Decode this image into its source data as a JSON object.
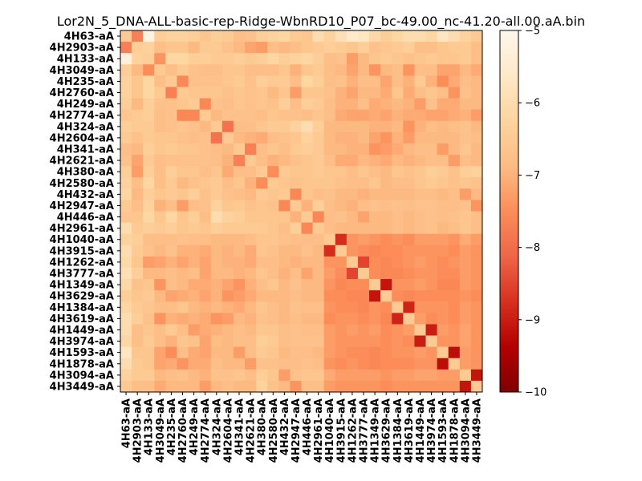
{
  "chart_data": {
    "type": "heatmap",
    "title": "Lor2N_5_DNA-ALL-basic-rep-Ridge-WbnRD10_P07_bc-49.00_nc-41.20-all.00.aA.bin",
    "labels": [
      "4H63-aA",
      "4H2903-aA",
      "4H133-aA",
      "4H3049-aA",
      "4H235-aA",
      "4H2760-aA",
      "4H249-aA",
      "4H2774-aA",
      "4H324-aA",
      "4H2604-aA",
      "4H341-aA",
      "4H2621-aA",
      "4H380-aA",
      "4H2580-aA",
      "4H432-aA",
      "4H2947-aA",
      "4H446-aA",
      "4H2961-aA",
      "4H1040-aA",
      "4H3915-aA",
      "4H1262-aA",
      "4H3777-aA",
      "4H1349-aA",
      "4H3629-aA",
      "4H1384-aA",
      "4H3619-aA",
      "4H1449-aA",
      "4H3974-aA",
      "4H1593-aA",
      "4H1878-aA",
      "4H3094-aA",
      "4H3449-aA"
    ],
    "colorbar": {
      "range": [
        -10,
        -5
      ],
      "ticks": [
        -5,
        -6,
        -7,
        -8,
        -9,
        -10
      ],
      "tick_labels": [
        "−5",
        "−6",
        "−7",
        "−8",
        "−9",
        "−10"
      ],
      "colormap": "OrRd_r"
    },
    "values": [
      [
        -6.5,
        -7.7,
        -5.2,
        -6.4,
        -6.3,
        -6.3,
        -6.4,
        -6.6,
        -6.4,
        -6.5,
        -6.8,
        -6.7,
        -6.4,
        -6.3,
        -6.2,
        -6.5,
        -6.6,
        -6.0,
        -6.3,
        -5.9,
        -5.6,
        -5.7,
        -6.1,
        -6.4,
        -6.2,
        -6.0,
        -6.0,
        -6.2,
        -5.7,
        -6.0,
        -6.3,
        -6.5
      ],
      [
        -7.7,
        -6.4,
        -6.3,
        -6.8,
        -6.6,
        -6.6,
        -6.9,
        -6.5,
        -6.5,
        -6.7,
        -6.9,
        -7.2,
        -7.3,
        -6.8,
        -6.9,
        -6.8,
        -6.6,
        -6.5,
        -6.4,
        -6.5,
        -6.6,
        -6.4,
        -6.7,
        -6.6,
        -6.5,
        -6.4,
        -6.8,
        -6.8,
        -6.6,
        -6.5,
        -6.5,
        -6.8
      ],
      [
        -5.3,
        -6.3,
        -6.4,
        -7.4,
        -6.2,
        -6.2,
        -6.4,
        -6.4,
        -6.5,
        -6.5,
        -6.4,
        -6.5,
        -6.4,
        -6.2,
        -6.4,
        -6.3,
        -6.2,
        -6.4,
        -6.8,
        -6.7,
        -7.3,
        -6.9,
        -6.6,
        -6.5,
        -6.6,
        -6.7,
        -6.6,
        -6.5,
        -6.6,
        -6.6,
        -6.5,
        -6.8
      ],
      [
        -6.4,
        -6.9,
        -7.5,
        -6.5,
        -6.8,
        -6.5,
        -6.7,
        -6.8,
        -6.8,
        -6.6,
        -6.6,
        -6.8,
        -6.8,
        -6.8,
        -6.6,
        -7.0,
        -6.6,
        -6.5,
        -6.8,
        -6.9,
        -7.2,
        -6.9,
        -7.4,
        -6.9,
        -6.8,
        -7.4,
        -6.8,
        -6.8,
        -7.2,
        -7.2,
        -6.9,
        -7.1
      ],
      [
        -6.3,
        -6.6,
        -6.2,
        -6.8,
        -6.5,
        -7.6,
        -6.7,
        -6.7,
        -6.7,
        -6.6,
        -6.5,
        -6.7,
        -6.4,
        -6.5,
        -6.5,
        -6.8,
        -6.2,
        -6.4,
        -6.8,
        -6.7,
        -7.0,
        -6.8,
        -6.8,
        -7.2,
        -6.8,
        -7.0,
        -6.5,
        -7.0,
        -7.5,
        -7.1,
        -6.8,
        -6.9
      ],
      [
        -6.3,
        -6.6,
        -6.2,
        -6.5,
        -7.7,
        -6.5,
        -6.6,
        -6.6,
        -6.6,
        -6.7,
        -6.6,
        -6.7,
        -6.6,
        -6.9,
        -6.6,
        -7.3,
        -6.6,
        -6.6,
        -6.7,
        -7.0,
        -7.2,
        -6.9,
        -6.9,
        -7.1,
        -6.6,
        -7.1,
        -6.8,
        -6.6,
        -6.8,
        -7.4,
        -6.7,
        -6.9
      ],
      [
        -6.4,
        -6.9,
        -6.4,
        -6.7,
        -6.7,
        -6.6,
        -6.5,
        -7.6,
        -6.7,
        -6.8,
        -6.6,
        -6.7,
        -6.6,
        -6.7,
        -6.4,
        -6.8,
        -6.4,
        -6.5,
        -6.8,
        -7.0,
        -7.0,
        -6.8,
        -7.1,
        -7.0,
        -6.9,
        -7.0,
        -7.3,
        -6.7,
        -7.1,
        -7.1,
        -6.9,
        -6.9
      ],
      [
        -6.6,
        -6.5,
        -6.4,
        -6.8,
        -6.7,
        -7.6,
        -7.6,
        -6.5,
        -6.9,
        -6.7,
        -6.7,
        -6.7,
        -6.8,
        -6.6,
        -6.7,
        -6.7,
        -6.8,
        -6.6,
        -6.8,
        -7.1,
        -7.2,
        -7.2,
        -7.1,
        -7.2,
        -7.0,
        -7.1,
        -7.1,
        -7.2,
        -7.2,
        -7.1,
        -7.0,
        -7.3
      ],
      [
        -6.4,
        -6.5,
        -6.5,
        -6.8,
        -6.7,
        -6.6,
        -6.7,
        -6.9,
        -6.5,
        -7.9,
        -6.8,
        -6.8,
        -6.6,
        -6.5,
        -6.5,
        -6.3,
        -6.0,
        -6.4,
        -6.9,
        -6.9,
        -6.9,
        -6.9,
        -7.0,
        -7.0,
        -6.9,
        -7.4,
        -7.0,
        -6.8,
        -6.9,
        -6.8,
        -6.7,
        -6.9
      ],
      [
        -6.5,
        -6.7,
        -6.5,
        -6.6,
        -6.6,
        -6.7,
        -6.8,
        -6.7,
        -7.9,
        -6.5,
        -6.9,
        -7.0,
        -7.1,
        -6.8,
        -6.7,
        -6.6,
        -6.3,
        -6.5,
        -6.9,
        -7.0,
        -7.0,
        -6.9,
        -7.2,
        -7.4,
        -7.0,
        -7.3,
        -6.9,
        -6.9,
        -6.9,
        -6.9,
        -6.7,
        -6.8
      ],
      [
        -6.8,
        -6.9,
        -6.4,
        -6.6,
        -6.5,
        -6.6,
        -6.6,
        -6.7,
        -6.8,
        -6.9,
        -6.5,
        -7.7,
        -6.8,
        -6.6,
        -6.8,
        -6.5,
        -6.4,
        -6.5,
        -6.9,
        -6.9,
        -7.0,
        -7.0,
        -7.4,
        -7.3,
        -7.1,
        -6.9,
        -6.8,
        -6.8,
        -7.3,
        -6.9,
        -6.6,
        -6.9
      ],
      [
        -6.7,
        -7.2,
        -6.5,
        -6.8,
        -6.7,
        -6.7,
        -6.7,
        -6.7,
        -6.8,
        -7.0,
        -7.7,
        -6.5,
        -6.8,
        -7.0,
        -6.9,
        -6.7,
        -6.6,
        -6.5,
        -6.8,
        -7.1,
        -7.1,
        -6.9,
        -7.0,
        -7.1,
        -6.9,
        -7.0,
        -6.9,
        -6.8,
        -6.8,
        -7.3,
        -6.8,
        -6.9
      ],
      [
        -6.4,
        -7.3,
        -6.4,
        -6.8,
        -6.4,
        -6.6,
        -6.6,
        -6.8,
        -6.6,
        -7.1,
        -6.8,
        -6.8,
        -6.5,
        -7.5,
        -6.5,
        -6.6,
        -6.6,
        -6.5,
        -6.6,
        -6.6,
        -6.8,
        -6.6,
        -6.8,
        -6.9,
        -6.6,
        -6.7,
        -6.6,
        -6.4,
        -6.5,
        -6.7,
        -6.4,
        -6.3
      ],
      [
        -6.3,
        -6.8,
        -6.2,
        -6.8,
        -6.5,
        -6.9,
        -6.7,
        -6.6,
        -6.5,
        -6.8,
        -6.6,
        -7.0,
        -7.5,
        -6.5,
        -6.6,
        -6.7,
        -6.6,
        -6.6,
        -6.6,
        -6.7,
        -6.8,
        -6.8,
        -6.6,
        -6.9,
        -6.8,
        -6.8,
        -6.6,
        -6.5,
        -6.6,
        -6.7,
        -6.6,
        -6.7
      ],
      [
        -6.2,
        -6.9,
        -6.4,
        -6.6,
        -6.5,
        -6.6,
        -6.4,
        -6.7,
        -6.5,
        -6.7,
        -6.8,
        -6.9,
        -6.5,
        -6.6,
        -6.5,
        -7.6,
        -6.6,
        -6.8,
        -6.7,
        -6.9,
        -6.9,
        -7.0,
        -6.9,
        -6.9,
        -6.9,
        -6.9,
        -6.8,
        -6.8,
        -6.9,
        -6.8,
        -7.3,
        -6.9
      ],
      [
        -6.5,
        -6.8,
        -6.3,
        -7.0,
        -6.8,
        -7.3,
        -6.8,
        -6.7,
        -6.3,
        -6.6,
        -6.5,
        -6.7,
        -6.6,
        -6.7,
        -7.6,
        -6.5,
        -7.0,
        -6.4,
        -6.8,
        -6.9,
        -7.0,
        -6.8,
        -6.7,
        -6.8,
        -6.7,
        -6.8,
        -6.7,
        -6.7,
        -6.8,
        -6.8,
        -6.7,
        -7.4
      ],
      [
        -6.6,
        -6.6,
        -6.2,
        -6.6,
        -6.2,
        -6.6,
        -6.4,
        -6.8,
        -6.0,
        -6.3,
        -6.4,
        -6.6,
        -6.6,
        -6.6,
        -6.6,
        -7.0,
        -6.5,
        -7.6,
        -6.8,
        -6.7,
        -6.9,
        -7.2,
        -6.9,
        -6.9,
        -6.8,
        -6.9,
        -6.8,
        -6.7,
        -6.8,
        -6.7,
        -6.6,
        -6.8
      ],
      [
        -6.0,
        -6.5,
        -6.4,
        -6.5,
        -6.4,
        -6.6,
        -6.5,
        -6.6,
        -6.4,
        -6.5,
        -6.5,
        -6.5,
        -6.5,
        -6.6,
        -6.8,
        -6.4,
        -7.6,
        -6.5,
        -6.8,
        -6.9,
        -6.9,
        -6.9,
        -6.9,
        -6.9,
        -6.8,
        -6.9,
        -6.8,
        -6.7,
        -6.9,
        -6.8,
        -6.6,
        -6.8
      ],
      [
        -6.3,
        -6.4,
        -6.8,
        -6.8,
        -6.8,
        -6.7,
        -6.8,
        -6.8,
        -6.9,
        -6.9,
        -6.9,
        -6.8,
        -6.6,
        -6.6,
        -6.7,
        -6.8,
        -6.8,
        -6.8,
        -6.5,
        -8.8,
        -7.4,
        -7.3,
        -7.4,
        -7.5,
        -7.4,
        -7.5,
        -7.3,
        -7.3,
        -7.3,
        -7.4,
        -7.1,
        -7.3
      ],
      [
        -6.0,
        -6.5,
        -6.7,
        -6.9,
        -6.7,
        -7.0,
        -7.0,
        -7.1,
        -6.9,
        -7.0,
        -6.9,
        -7.1,
        -6.6,
        -6.7,
        -6.9,
        -6.9,
        -6.7,
        -6.9,
        -8.8,
        -6.5,
        -7.4,
        -7.5,
        -7.6,
        -7.5,
        -7.5,
        -7.4,
        -7.4,
        -7.4,
        -7.4,
        -7.5,
        -7.3,
        -7.4
      ],
      [
        -6.1,
        -6.6,
        -7.3,
        -7.2,
        -7.0,
        -7.2,
        -7.0,
        -7.2,
        -6.9,
        -7.0,
        -7.0,
        -7.1,
        -6.8,
        -6.8,
        -6.9,
        -7.0,
        -6.9,
        -6.9,
        -7.4,
        -7.4,
        -6.5,
        -8.5,
        -7.5,
        -7.6,
        -7.5,
        -7.4,
        -7.3,
        -7.4,
        -7.5,
        -7.4,
        -7.3,
        -7.4
      ],
      [
        -5.9,
        -6.4,
        -6.9,
        -6.9,
        -6.8,
        -6.9,
        -6.8,
        -7.2,
        -6.9,
        -6.9,
        -7.0,
        -6.9,
        -6.6,
        -6.8,
        -7.0,
        -6.8,
        -7.2,
        -6.9,
        -7.3,
        -7.5,
        -8.5,
        -6.5,
        -7.5,
        -7.6,
        -7.6,
        -7.5,
        -7.4,
        -7.4,
        -7.5,
        -7.5,
        -7.3,
        -7.4
      ],
      [
        -6.1,
        -6.7,
        -6.6,
        -7.4,
        -6.8,
        -6.9,
        -7.1,
        -7.1,
        -7.0,
        -7.2,
        -7.4,
        -7.0,
        -6.8,
        -6.6,
        -6.9,
        -6.7,
        -6.9,
        -6.9,
        -7.4,
        -7.6,
        -7.5,
        -7.5,
        -6.5,
        -9.1,
        -7.4,
        -7.4,
        -7.3,
        -7.4,
        -7.6,
        -7.6,
        -7.3,
        -7.4
      ],
      [
        -6.4,
        -6.6,
        -6.5,
        -6.9,
        -7.2,
        -7.1,
        -7.0,
        -7.2,
        -7.0,
        -7.4,
        -7.3,
        -7.1,
        -6.9,
        -6.9,
        -6.9,
        -6.8,
        -6.9,
        -6.9,
        -7.5,
        -7.5,
        -7.6,
        -7.6,
        -9.1,
        -6.5,
        -7.5,
        -7.6,
        -7.5,
        -7.5,
        -7.5,
        -7.5,
        -7.4,
        -7.5
      ],
      [
        -6.2,
        -6.5,
        -6.6,
        -6.8,
        -6.8,
        -6.6,
        -6.9,
        -7.0,
        -6.9,
        -7.0,
        -7.1,
        -6.9,
        -6.6,
        -6.8,
        -6.9,
        -6.7,
        -6.8,
        -6.8,
        -7.4,
        -7.5,
        -7.5,
        -7.6,
        -7.4,
        -7.5,
        -6.5,
        -8.9,
        -7.4,
        -7.4,
        -7.4,
        -7.5,
        -7.3,
        -7.4
      ],
      [
        -6.0,
        -6.4,
        -6.7,
        -7.4,
        -7.0,
        -7.1,
        -7.0,
        -7.1,
        -7.4,
        -7.3,
        -6.9,
        -7.0,
        -6.7,
        -6.8,
        -6.9,
        -6.8,
        -6.9,
        -6.9,
        -7.5,
        -7.4,
        -7.4,
        -7.5,
        -7.4,
        -7.6,
        -8.9,
        -6.5,
        -7.3,
        -7.5,
        -7.4,
        -7.5,
        -7.3,
        -7.4
      ],
      [
        -6.0,
        -6.8,
        -6.6,
        -6.8,
        -6.5,
        -6.8,
        -7.3,
        -7.1,
        -7.0,
        -6.9,
        -6.8,
        -6.9,
        -6.6,
        -6.6,
        -6.8,
        -6.7,
        -6.8,
        -6.8,
        -7.3,
        -7.4,
        -7.3,
        -7.4,
        -7.3,
        -7.5,
        -7.4,
        -7.3,
        -6.5,
        -9.0,
        -7.3,
        -7.4,
        -7.2,
        -7.4
      ],
      [
        -6.2,
        -6.8,
        -6.5,
        -6.8,
        -7.0,
        -6.6,
        -6.7,
        -7.2,
        -6.8,
        -6.9,
        -6.8,
        -6.8,
        -6.4,
        -6.5,
        -6.8,
        -6.7,
        -6.7,
        -6.7,
        -7.3,
        -7.4,
        -7.4,
        -7.4,
        -7.4,
        -7.5,
        -7.4,
        -7.5,
        -9.0,
        -6.5,
        -7.4,
        -7.4,
        -7.2,
        -7.4
      ],
      [
        -5.7,
        -6.6,
        -6.6,
        -7.2,
        -7.5,
        -6.8,
        -7.1,
        -7.2,
        -6.9,
        -6.9,
        -7.3,
        -6.8,
        -6.5,
        -6.6,
        -6.9,
        -6.8,
        -6.8,
        -6.9,
        -7.3,
        -7.4,
        -7.5,
        -7.5,
        -7.6,
        -7.5,
        -7.4,
        -7.4,
        -7.3,
        -7.4,
        -6.5,
        -9.2,
        -7.3,
        -7.4
      ],
      [
        -6.0,
        -6.5,
        -6.6,
        -7.2,
        -7.1,
        -7.4,
        -7.1,
        -7.1,
        -6.8,
        -6.9,
        -6.9,
        -7.3,
        -6.7,
        -6.7,
        -6.8,
        -6.8,
        -6.7,
        -6.8,
        -7.4,
        -7.5,
        -7.4,
        -7.5,
        -7.6,
        -7.5,
        -7.5,
        -7.5,
        -7.4,
        -7.4,
        -9.2,
        -6.5,
        -7.3,
        -7.4
      ],
      [
        -6.3,
        -6.5,
        -6.5,
        -6.9,
        -6.8,
        -6.7,
        -6.9,
        -7.0,
        -6.7,
        -6.7,
        -6.6,
        -6.8,
        -6.4,
        -6.6,
        -7.3,
        -6.7,
        -6.6,
        -6.6,
        -7.1,
        -7.3,
        -7.3,
        -7.3,
        -7.3,
        -7.4,
        -7.3,
        -7.3,
        -7.2,
        -7.2,
        -7.3,
        -7.3,
        -6.5,
        -9.1
      ],
      [
        -6.5,
        -6.8,
        -6.8,
        -7.1,
        -6.9,
        -6.9,
        -6.9,
        -7.3,
        -6.9,
        -6.8,
        -6.9,
        -6.9,
        -6.3,
        -6.7,
        -6.9,
        -7.4,
        -6.8,
        -6.8,
        -7.3,
        -7.4,
        -7.4,
        -7.4,
        -7.4,
        -7.5,
        -7.4,
        -7.4,
        -7.4,
        -7.4,
        -7.4,
        -7.4,
        -9.1,
        -6.5
      ]
    ]
  }
}
